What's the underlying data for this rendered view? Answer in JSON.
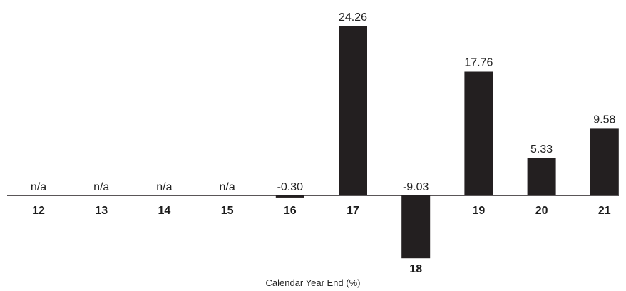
{
  "chart_data": {
    "type": "bar",
    "title": "",
    "xlabel": "Calendar Year End (%)",
    "ylabel": "",
    "categories": [
      "12",
      "13",
      "14",
      "15",
      "16",
      "17",
      "18",
      "19",
      "20",
      "21"
    ],
    "values": [
      null,
      null,
      null,
      null,
      -0.3,
      24.26,
      -9.03,
      17.76,
      5.33,
      9.58
    ],
    "value_labels": [
      "n/a",
      "n/a",
      "n/a",
      "n/a",
      "-0.30",
      "24.26",
      "-9.03",
      "17.76",
      "5.33",
      "9.58"
    ],
    "ylim": [
      -9.03,
      24.26
    ],
    "grid": false,
    "legend": "none",
    "colors": {
      "bar": "#231f20",
      "axis": "#231f20",
      "text": "#222222"
    }
  }
}
